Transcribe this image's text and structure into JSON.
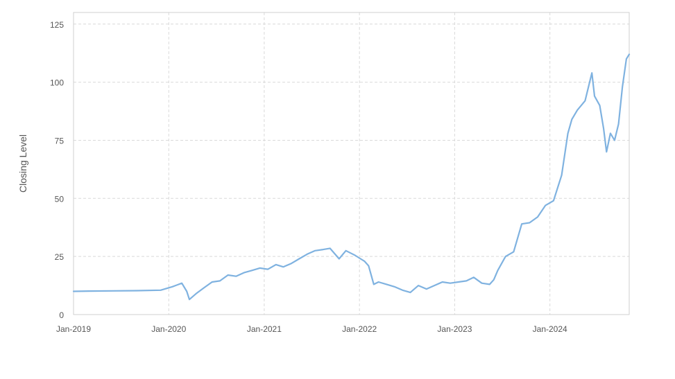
{
  "chart_data": {
    "type": "line",
    "title": "",
    "xlabel": "",
    "ylabel": "Closing Level",
    "grid": true,
    "legend": "none",
    "xlim": [
      "2019-01-01",
      "2024-10-31"
    ],
    "ylim": [
      0,
      130
    ],
    "x_ticks": [
      {
        "date": "2019-01-01",
        "label": "Jan-2019"
      },
      {
        "date": "2020-01-01",
        "label": "Jan-2020"
      },
      {
        "date": "2021-01-01",
        "label": "Jan-2021"
      },
      {
        "date": "2022-01-01",
        "label": "Jan-2022"
      },
      {
        "date": "2023-01-01",
        "label": "Jan-2023"
      },
      {
        "date": "2024-01-01",
        "label": "Jan-2024"
      }
    ],
    "y_ticks": [
      0,
      25,
      50,
      75,
      100,
      125
    ],
    "line_color": "#7fb2e0",
    "series": [
      {
        "x": [
          "2019-01-01",
          "2019-03-01",
          "2019-06-01",
          "2019-09-01",
          "2019-12-01",
          "2020-01-15",
          "2020-02-20",
          "2020-03-10",
          "2020-03-20",
          "2020-04-15",
          "2020-05-15",
          "2020-06-15",
          "2020-07-15",
          "2020-08-15",
          "2020-09-15",
          "2020-10-15",
          "2020-11-15",
          "2020-12-15",
          "2021-01-15",
          "2021-02-15",
          "2021-03-15",
          "2021-04-15",
          "2021-05-15",
          "2021-06-15",
          "2021-07-15",
          "2021-08-15",
          "2021-09-10",
          "2021-10-15",
          "2021-11-10",
          "2021-12-15",
          "2022-01-05",
          "2022-01-20",
          "2022-02-05",
          "2022-02-25",
          "2022-03-15",
          "2022-04-15",
          "2022-05-15",
          "2022-06-15",
          "2022-07-15",
          "2022-08-15",
          "2022-09-15",
          "2022-10-15",
          "2022-11-15",
          "2022-12-15",
          "2023-01-15",
          "2023-02-15",
          "2023-03-15",
          "2023-04-15",
          "2023-05-15",
          "2023-05-31",
          "2023-06-15",
          "2023-07-15",
          "2023-08-15",
          "2023-09-15",
          "2023-10-15",
          "2023-11-15",
          "2023-12-15",
          "2024-01-15",
          "2024-02-15",
          "2024-03-10",
          "2024-03-25",
          "2024-04-15",
          "2024-05-15",
          "2024-06-10",
          "2024-06-20",
          "2024-07-10",
          "2024-07-25",
          "2024-08-05",
          "2024-08-20",
          "2024-09-05",
          "2024-09-20",
          "2024-10-05",
          "2024-10-20",
          "2024-10-31"
        ],
        "y": [
          10.0,
          10.1,
          10.2,
          10.3,
          10.5,
          12.0,
          13.5,
          10.0,
          6.5,
          9.0,
          11.5,
          14.0,
          14.5,
          17.0,
          16.5,
          18.0,
          19.0,
          20.0,
          19.5,
          21.5,
          20.5,
          22.0,
          24.0,
          26.0,
          27.5,
          28.0,
          28.5,
          24.0,
          27.5,
          25.5,
          24.0,
          23.0,
          21.0,
          13.0,
          14.0,
          13.0,
          12.0,
          10.5,
          9.5,
          12.5,
          11.0,
          12.5,
          14.0,
          13.5,
          14.0,
          14.5,
          16.0,
          13.5,
          13.0,
          15.0,
          19.0,
          25.0,
          27.0,
          39.0,
          39.5,
          42.0,
          47.0,
          49.0,
          60.0,
          78.0,
          84.0,
          88.0,
          92.0,
          104.0,
          94.0,
          90.0,
          80.0,
          70.0,
          78.0,
          75.0,
          82.0,
          98.0,
          110.0,
          112.0
        ]
      }
    ]
  }
}
